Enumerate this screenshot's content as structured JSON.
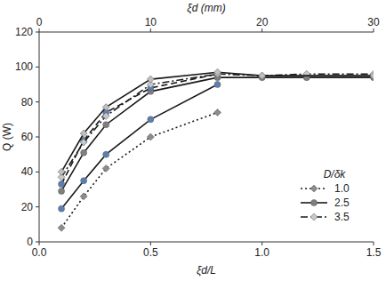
{
  "chart_data": {
    "type": "line",
    "x_label": "ξd/L",
    "x2_label": "ξd (mm)",
    "y_label": "Q (W)",
    "legend_title": "D/δk",
    "xlim": [
      0,
      1.5
    ],
    "xticks": [
      {
        "value": 0,
        "label": "0.0"
      },
      {
        "value": 0.5,
        "label": "0.5"
      },
      {
        "value": 1,
        "label": "1.0"
      },
      {
        "value": 1.5,
        "label": "1.5"
      }
    ],
    "x2lim": [
      0,
      30
    ],
    "x2ticks": [
      0,
      10,
      20,
      30
    ],
    "ylim": [
      0,
      120
    ],
    "yticks": [
      0,
      20,
      40,
      60,
      80,
      100,
      120
    ],
    "grid": false,
    "legend": "lower right",
    "series": [
      {
        "name": "1.0",
        "color": "#8c8c8c",
        "line_style": "dotted",
        "marker": "diamond",
        "x": [
          0.1,
          0.2,
          0.3,
          0.5,
          0.8
        ],
        "values": [
          8,
          26,
          42,
          60,
          74
        ]
      },
      {
        "color": "#5b7fb5",
        "line_style": "solid",
        "marker": "circle",
        "x": [
          0.1,
          0.2,
          0.3,
          0.5,
          0.8
        ],
        "values": [
          19,
          35,
          50,
          70,
          90
        ]
      },
      {
        "name": "2.5",
        "color": "#7f7f7f",
        "line_style": "solid",
        "marker": "circle",
        "x": [
          0.1,
          0.2,
          0.3,
          0.5,
          0.8,
          1.0,
          1.2,
          1.5
        ],
        "values": [
          29,
          51,
          67,
          86,
          94,
          94,
          94,
          94
        ]
      },
      {
        "color": "#5b7fb5",
        "line_style": "dashed",
        "marker": "circle",
        "x": [
          0.1,
          0.2,
          0.3,
          0.5,
          0.8
        ],
        "values": [
          33,
          58,
          74,
          88,
          96
        ]
      },
      {
        "name": "3.5",
        "color": "#c8c8c8",
        "line_style": "dash_dot",
        "marker": "diamond",
        "x": [
          0.1,
          0.2,
          0.3,
          0.5,
          0.8,
          1.0,
          1.2,
          1.5
        ],
        "values": [
          37,
          57,
          72,
          90,
          96,
          95,
          96,
          96
        ]
      },
      {
        "color": "#bfbfbf",
        "line_style": "solid",
        "marker": "diamond",
        "x": [
          0.1,
          0.2,
          0.3,
          0.5,
          0.8,
          1.0,
          1.5
        ],
        "values": [
          40,
          62,
          77,
          93,
          97,
          95,
          95
        ]
      }
    ]
  }
}
